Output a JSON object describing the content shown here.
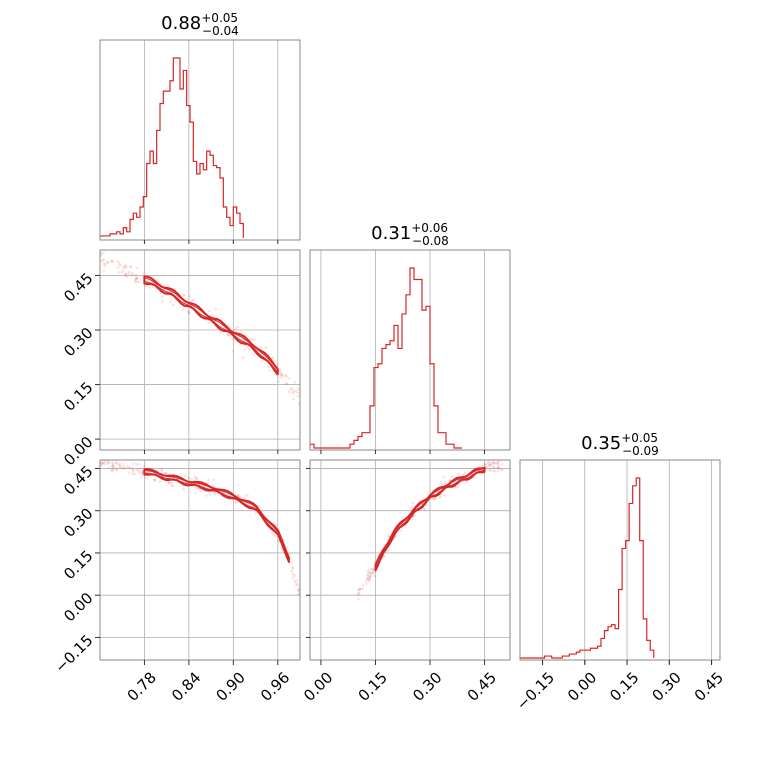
{
  "chart_data": {
    "type": "corner",
    "parameters": [
      {
        "title_value": "0.88",
        "title_plus": "+0.05",
        "title_minus": "−0.04",
        "ticks": [
          0.78,
          0.84,
          0.9,
          0.96
        ],
        "tick_labels": [
          "0.78",
          "0.84",
          "0.90",
          "0.96"
        ],
        "range": [
          0.72,
          0.99
        ]
      },
      {
        "title_value": "0.31",
        "title_plus": "+0.06",
        "title_minus": "−0.08",
        "ticks": [
          0.0,
          0.15,
          0.3,
          0.45
        ],
        "tick_labels": [
          "0.00",
          "0.15",
          "0.30",
          "0.45"
        ],
        "range": [
          -0.03,
          0.52
        ]
      },
      {
        "title_value": "0.35",
        "title_plus": "+0.05",
        "title_minus": "−0.09",
        "ticks": [
          -0.15,
          0.0,
          0.15,
          0.3,
          0.45
        ],
        "tick_labels": [
          "−0.15",
          "0.00",
          "0.15",
          "0.30",
          "0.45"
        ],
        "range": [
          -0.23,
          0.48
        ]
      }
    ],
    "histograms": [
      {
        "param": 0,
        "bins_start": 0.72,
        "bin_width": 0.0045,
        "counts": [
          1,
          1,
          1,
          2,
          2,
          3,
          2,
          5,
          3,
          9,
          12,
          10,
          15,
          20,
          36,
          42,
          36,
          52,
          65,
          71,
          71,
          76,
          87,
          87,
          72,
          81,
          64,
          56,
          37,
          31,
          36,
          33,
          42,
          40,
          35,
          34,
          29,
          15,
          10,
          6,
          15,
          12,
          7
        ]
      },
      {
        "param": 1,
        "bins_start": -0.03,
        "bin_width": 0.011,
        "counts": [
          1,
          0,
          0,
          0,
          0,
          0,
          0,
          0,
          0,
          0,
          1,
          2,
          3,
          4,
          4,
          11,
          21,
          22,
          26,
          27,
          28,
          32,
          26,
          35,
          40,
          47,
          44,
          44,
          36,
          37,
          22,
          11,
          4,
          4,
          1,
          1,
          0,
          0
        ]
      },
      {
        "param": 2,
        "bins_start": -0.23,
        "bin_width": 0.0125,
        "counts": [
          0,
          0,
          0,
          0,
          0,
          0,
          0,
          1,
          1,
          0,
          0,
          0,
          1,
          1,
          2,
          2,
          3,
          4,
          4,
          4,
          5,
          5,
          6,
          10,
          14,
          16,
          17,
          15,
          35,
          56,
          60,
          79,
          88,
          92,
          60,
          20,
          9,
          4
        ]
      }
    ],
    "pairs": [
      {
        "x_param": 0,
        "y_param": 1,
        "ridge_x": [
          0.72,
          0.78,
          0.81,
          0.84,
          0.87,
          0.9,
          0.93,
          0.96,
          0.99
        ],
        "ridge_y": [
          0.5,
          0.44,
          0.41,
          0.37,
          0.33,
          0.29,
          0.25,
          0.19,
          0.11
        ]
      },
      {
        "x_param": 0,
        "y_param": 2,
        "ridge_x": [
          0.72,
          0.78,
          0.81,
          0.84,
          0.87,
          0.9,
          0.93,
          0.96,
          0.975,
          0.99
        ],
        "ridge_y": [
          0.47,
          0.44,
          0.42,
          0.4,
          0.38,
          0.35,
          0.31,
          0.22,
          0.13,
          0.0
        ]
      },
      {
        "x_param": 1,
        "y_param": 2,
        "ridge_x": [
          0.1,
          0.15,
          0.2,
          0.25,
          0.3,
          0.35,
          0.4,
          0.45,
          0.5
        ],
        "ridge_y": [
          0.0,
          0.1,
          0.22,
          0.29,
          0.35,
          0.39,
          0.42,
          0.45,
          0.47
        ]
      }
    ],
    "grid": true,
    "color": "#d62728"
  }
}
